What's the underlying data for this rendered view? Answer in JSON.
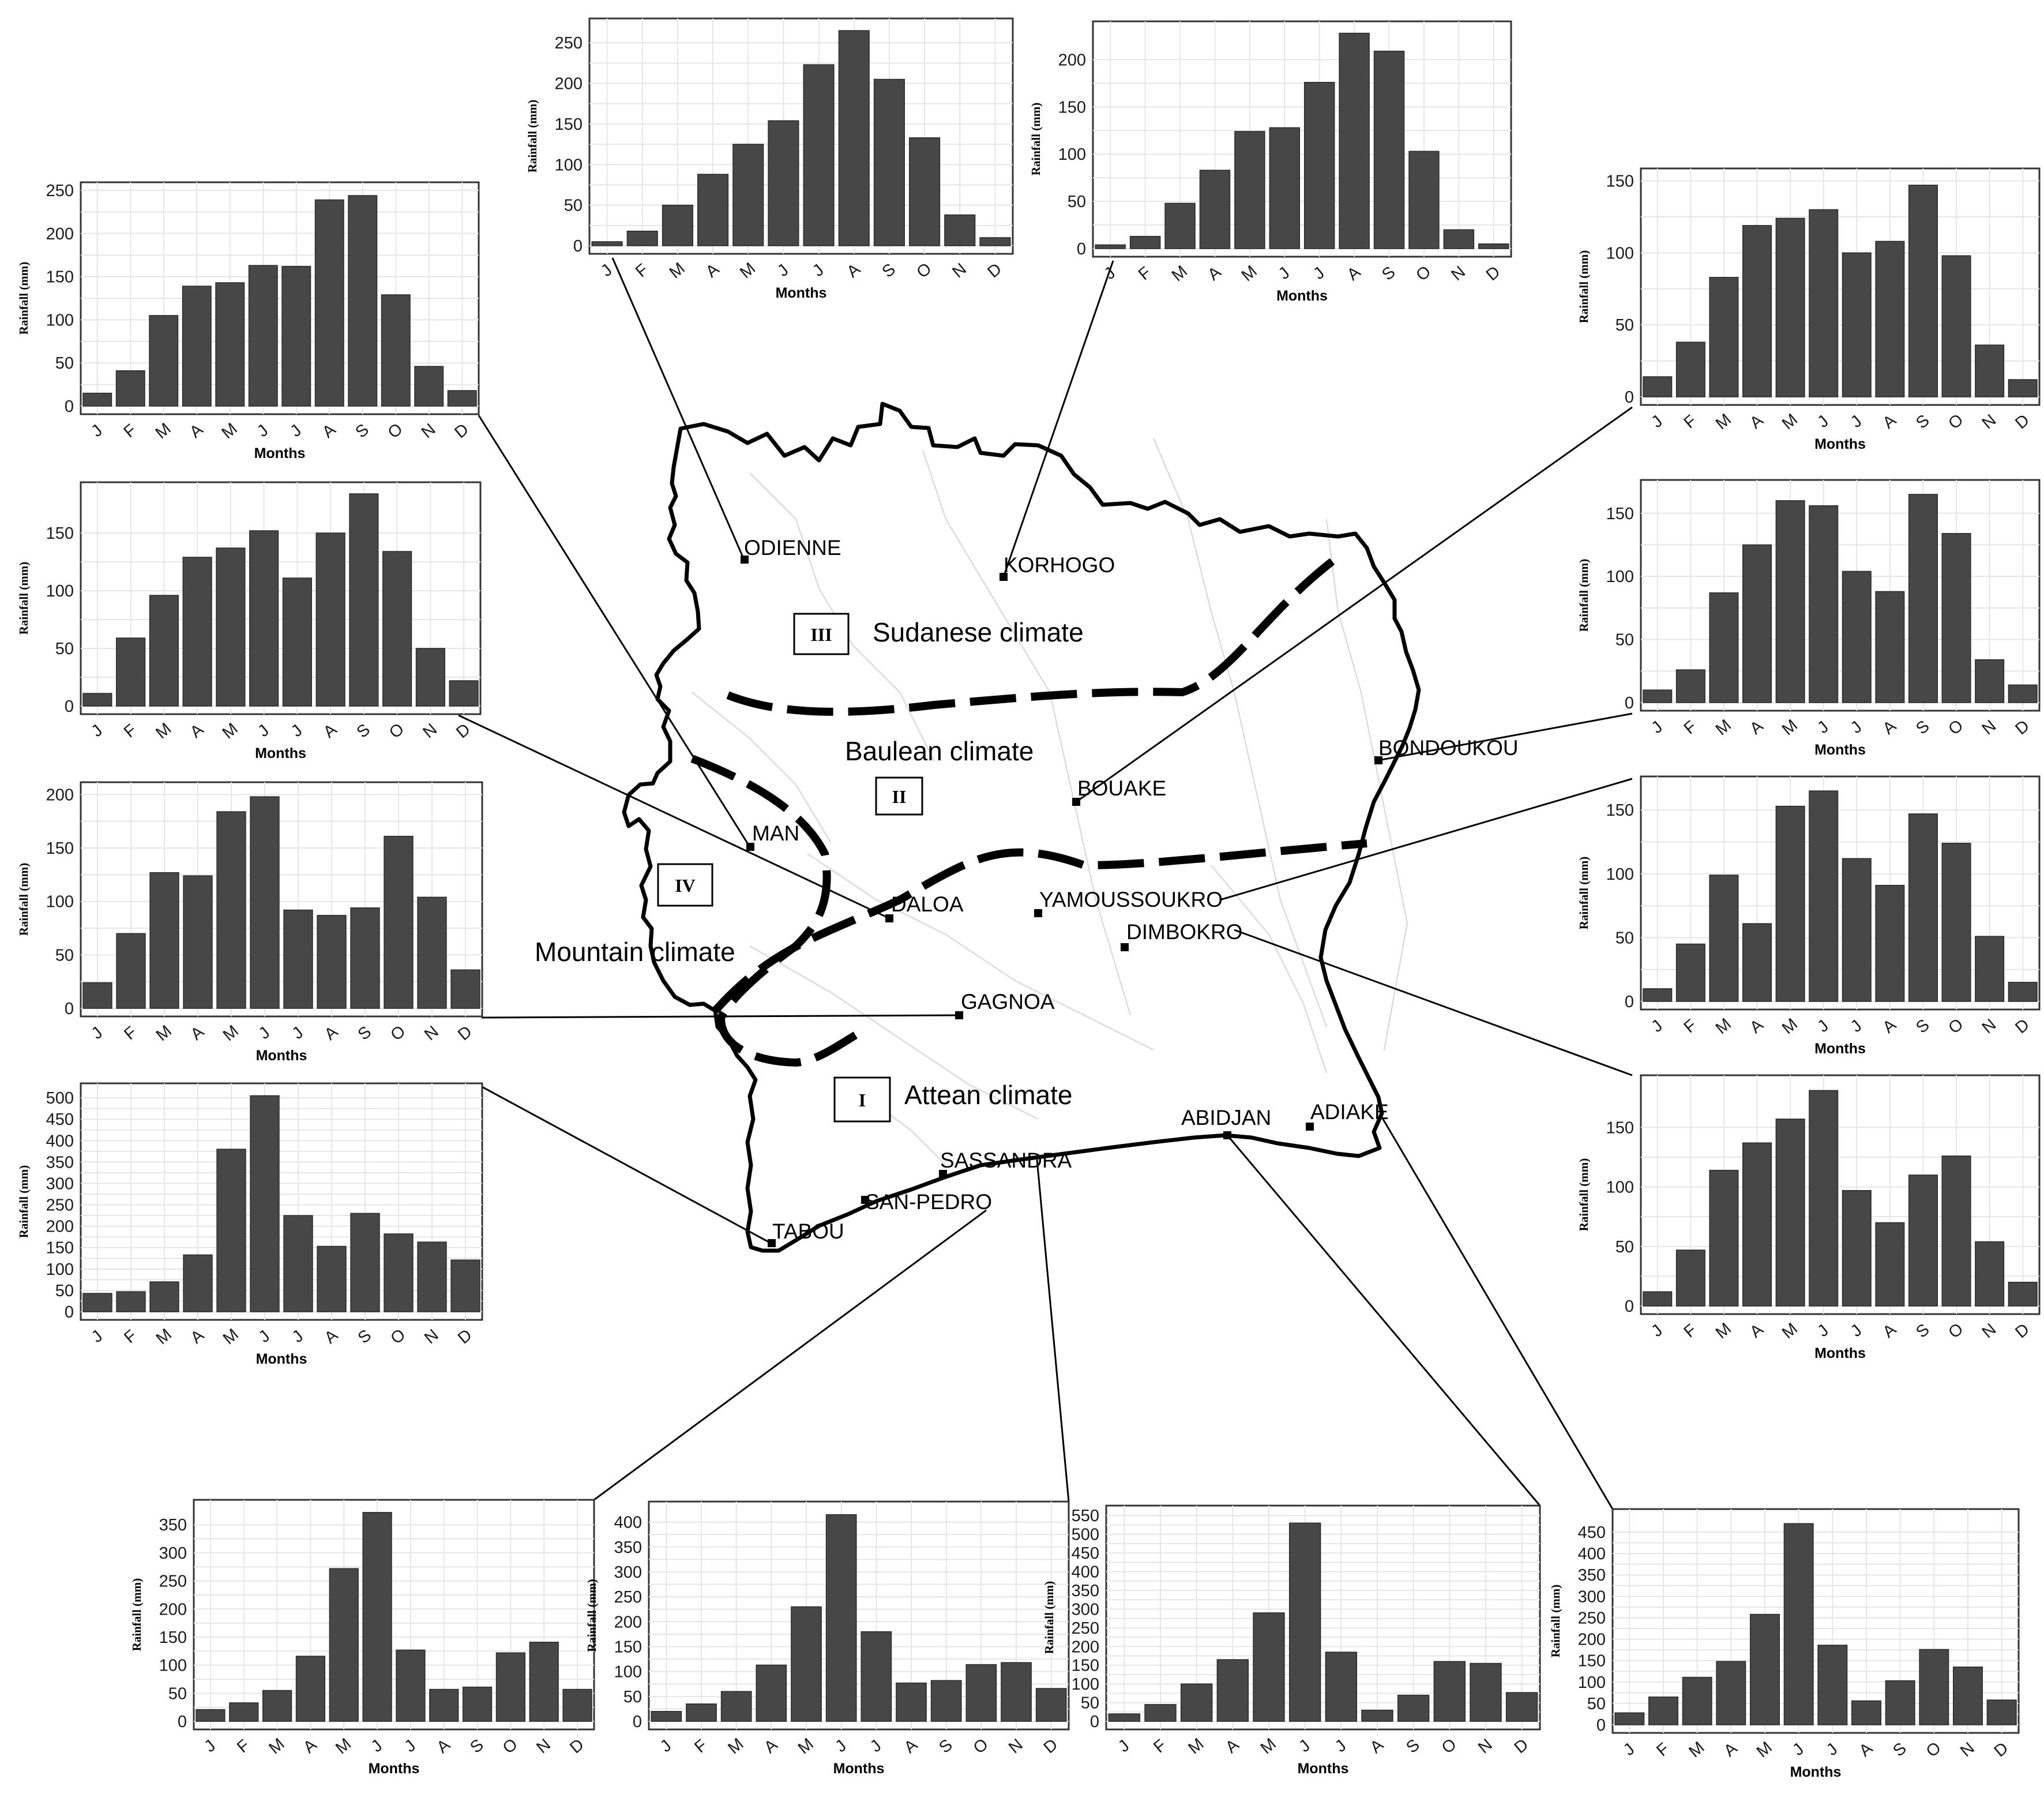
{
  "colors": {
    "bar": "#474747",
    "grid": "#e5e5e5",
    "outline": "#000000"
  },
  "map": {
    "zones": [
      {
        "id": "III",
        "numeral": "III",
        "label": "Sudanese climate"
      },
      {
        "id": "II",
        "numeral": "II",
        "label": "Baulean climate"
      },
      {
        "id": "IV",
        "numeral": "IV",
        "label": "Mountain climate"
      },
      {
        "id": "I",
        "numeral": "I",
        "label": "Attean climate"
      }
    ],
    "cities": [
      {
        "id": "odienne",
        "name": "ODIENNE"
      },
      {
        "id": "korhogo",
        "name": "KORHOGO"
      },
      {
        "id": "bondoukou",
        "name": "BONDOUKOU"
      },
      {
        "id": "bouake",
        "name": "BOUAKE"
      },
      {
        "id": "man",
        "name": "MAN"
      },
      {
        "id": "daloa",
        "name": "DALOA"
      },
      {
        "id": "yamoussoukro",
        "name": "YAMOUSSOUKRO"
      },
      {
        "id": "dimbokro",
        "name": "DIMBOKRO"
      },
      {
        "id": "gagnoa",
        "name": "GAGNOA"
      },
      {
        "id": "abidjan",
        "name": "ABIDJAN"
      },
      {
        "id": "adiake",
        "name": "ADIAKE"
      },
      {
        "id": "sassandra",
        "name": "SASSANDRA"
      },
      {
        "id": "san-pedro",
        "name": "SAN-PEDRO"
      },
      {
        "id": "tabou",
        "name": "TABOU"
      }
    ]
  },
  "chart_data": [
    {
      "type": "bar",
      "station": "ODIENNE",
      "title": "",
      "xlabel": "Months",
      "ylabel": "Rainfall (mm)",
      "categories": [
        "J",
        "F",
        "M",
        "A",
        "M",
        "J",
        "J",
        "A",
        "S",
        "O",
        "N",
        "D"
      ],
      "values": [
        5,
        18,
        50,
        88,
        125,
        154,
        223,
        265,
        205,
        133,
        38,
        10
      ],
      "yticks": [
        0,
        50,
        100,
        150,
        200,
        250
      ],
      "ylim": [
        0,
        270
      ]
    },
    {
      "type": "bar",
      "station": "KORHOGO",
      "title": "",
      "xlabel": "Months",
      "ylabel": "Rainfall (mm)",
      "categories": [
        "J",
        "F",
        "M",
        "A",
        "M",
        "J",
        "J",
        "A",
        "S",
        "O",
        "N",
        "D"
      ],
      "values": [
        4,
        13,
        48,
        83,
        124,
        128,
        176,
        228,
        209,
        103,
        20,
        5
      ],
      "yticks": [
        0,
        50,
        100,
        150,
        200
      ],
      "ylim": [
        0,
        232
      ]
    },
    {
      "type": "bar",
      "station": "MAN",
      "title": "",
      "xlabel": "Months",
      "ylabel": "Rainfall (mm)",
      "categories": [
        "J",
        "F",
        "M",
        "A",
        "M",
        "J",
        "J",
        "A",
        "S",
        "O",
        "N",
        "D"
      ],
      "values": [
        15,
        41,
        105,
        139,
        143,
        163,
        162,
        239,
        244,
        129,
        46,
        18
      ],
      "yticks": [
        0,
        50,
        100,
        150,
        200,
        250
      ],
      "ylim": [
        0,
        250
      ]
    },
    {
      "type": "bar",
      "station": "DALOA",
      "title": "",
      "xlabel": "Months",
      "ylabel": "Rainfall (mm)",
      "categories": [
        "J",
        "F",
        "M",
        "A",
        "M",
        "J",
        "J",
        "A",
        "S",
        "O",
        "N",
        "D"
      ],
      "values": [
        11,
        59,
        96,
        129,
        137,
        152,
        111,
        150,
        184,
        134,
        50,
        22
      ],
      "yticks": [
        0,
        50,
        100,
        150
      ],
      "ylim": [
        0,
        187
      ]
    },
    {
      "type": "bar",
      "station": "GAGNOA",
      "title": "",
      "xlabel": "Months",
      "ylabel": "Rainfall (mm)",
      "categories": [
        "J",
        "F",
        "M",
        "A",
        "M",
        "J",
        "J",
        "A",
        "S",
        "O",
        "N",
        "D"
      ],
      "values": [
        24,
        70,
        127,
        124,
        184,
        198,
        92,
        87,
        94,
        161,
        104,
        36
      ],
      "yticks": [
        0,
        50,
        100,
        150,
        200
      ],
      "ylim": [
        0,
        204
      ]
    },
    {
      "type": "bar",
      "station": "TABOU",
      "title": "",
      "xlabel": "Months",
      "ylabel": "Rainfall (mm)",
      "categories": [
        "J",
        "F",
        "M",
        "A",
        "M",
        "J",
        "J",
        "A",
        "S",
        "O",
        "N",
        "D"
      ],
      "values": [
        43,
        47,
        70,
        133,
        380,
        505,
        225,
        153,
        230,
        182,
        163,
        121
      ],
      "yticks": [
        0,
        50,
        100,
        150,
        200,
        250,
        300,
        350,
        400,
        450,
        500
      ],
      "ylim": [
        0,
        515
      ]
    },
    {
      "type": "bar",
      "station": "BOUAKE",
      "title": "",
      "xlabel": "Months",
      "ylabel": "Rainfall (mm)",
      "categories": [
        "J",
        "F",
        "M",
        "A",
        "M",
        "J",
        "J",
        "A",
        "S",
        "O",
        "N",
        "D"
      ],
      "values": [
        14,
        38,
        83,
        119,
        124,
        130,
        100,
        108,
        147,
        98,
        36,
        12
      ],
      "yticks": [
        0,
        50,
        100,
        150
      ],
      "ylim": [
        0,
        153
      ]
    },
    {
      "type": "bar",
      "station": "BONDOUKOU",
      "title": "",
      "xlabel": "Months",
      "ylabel": "Rainfall (mm)",
      "categories": [
        "J",
        "F",
        "M",
        "A",
        "M",
        "J",
        "J",
        "A",
        "S",
        "O",
        "N",
        "D"
      ],
      "values": [
        10,
        26,
        87,
        125,
        160,
        156,
        104,
        88,
        165,
        134,
        34,
        14
      ],
      "yticks": [
        0,
        50,
        100,
        150
      ],
      "ylim": [
        0,
        170
      ]
    },
    {
      "type": "bar",
      "station": "YAMOUSSOUKRO",
      "title": "",
      "xlabel": "Months",
      "ylabel": "Rainfall (mm)",
      "categories": [
        "J",
        "F",
        "M",
        "A",
        "M",
        "J",
        "J",
        "A",
        "S",
        "O",
        "N",
        "D"
      ],
      "values": [
        10,
        45,
        99,
        61,
        153,
        165,
        112,
        91,
        147,
        124,
        51,
        15
      ],
      "yticks": [
        0,
        50,
        100,
        150
      ],
      "ylim": [
        0,
        170
      ]
    },
    {
      "type": "bar",
      "station": "DIMBOKRO",
      "title": "",
      "xlabel": "Months",
      "ylabel": "Rainfall (mm)",
      "categories": [
        "J",
        "F",
        "M",
        "A",
        "M",
        "J",
        "J",
        "A",
        "S",
        "O",
        "N",
        "D"
      ],
      "values": [
        12,
        47,
        114,
        137,
        157,
        181,
        97,
        70,
        110,
        126,
        54,
        20
      ],
      "yticks": [
        0,
        50,
        100,
        150
      ],
      "ylim": [
        0,
        187
      ]
    },
    {
      "type": "bar",
      "station": "SAN-PEDRO",
      "title": "",
      "xlabel": "Months",
      "ylabel": "Rainfall (mm)",
      "categories": [
        "J",
        "F",
        "M",
        "A",
        "M",
        "J",
        "J",
        "A",
        "S",
        "O",
        "N",
        "D"
      ],
      "values": [
        21,
        33,
        55,
        116,
        272,
        372,
        127,
        57,
        61,
        122,
        141,
        57
      ],
      "yticks": [
        0,
        50,
        100,
        150,
        200,
        250,
        300,
        350
      ],
      "ylim": [
        0,
        380
      ]
    },
    {
      "type": "bar",
      "station": "SASSANDRA",
      "title": "",
      "xlabel": "Months",
      "ylabel": "Rainfall (mm)",
      "categories": [
        "J",
        "F",
        "M",
        "A",
        "M",
        "J",
        "J",
        "A",
        "S",
        "O",
        "N",
        "D"
      ],
      "values": [
        20,
        35,
        60,
        113,
        230,
        415,
        180,
        77,
        82,
        114,
        118,
        66
      ],
      "yticks": [
        0,
        50,
        100,
        150,
        200,
        250,
        300,
        350,
        400
      ],
      "ylim": [
        0,
        425
      ]
    },
    {
      "type": "bar",
      "station": "ABIDJAN",
      "title": "",
      "xlabel": "Months",
      "ylabel": "Rainfall (mm)",
      "categories": [
        "J",
        "F",
        "M",
        "A",
        "M",
        "J",
        "J",
        "A",
        "S",
        "O",
        "N",
        "D"
      ],
      "values": [
        20,
        45,
        100,
        165,
        290,
        530,
        185,
        30,
        70,
        160,
        155,
        77
      ],
      "yticks": [
        0,
        50,
        100,
        150,
        200,
        250,
        300,
        350,
        400,
        450,
        500,
        550
      ],
      "ylim": [
        0,
        555
      ]
    },
    {
      "type": "bar",
      "station": "ADIAKE",
      "title": "",
      "xlabel": "Months",
      "ylabel": "Rainfall (mm)",
      "categories": [
        "J",
        "F",
        "M",
        "A",
        "M",
        "J",
        "J",
        "A",
        "S",
        "O",
        "N",
        "D"
      ],
      "values": [
        28,
        65,
        111,
        148,
        258,
        470,
        186,
        56,
        103,
        176,
        135,
        58
      ],
      "yticks": [
        0,
        50,
        100,
        150,
        200,
        250,
        300,
        350,
        400,
        450
      ],
      "ylim": [
        0,
        485
      ]
    }
  ]
}
